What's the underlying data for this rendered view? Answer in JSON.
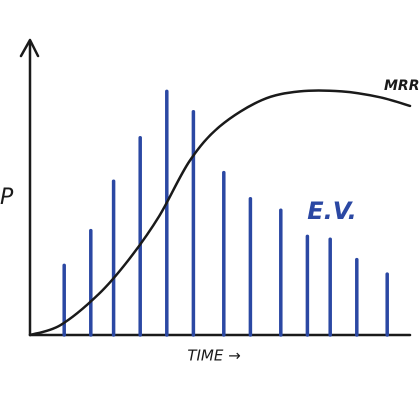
{
  "chart_data": {
    "type": "bar-line",
    "xlabel": "TIME →",
    "ylabel": "P",
    "annotation": "E.V.",
    "xlim": [
      0,
      100
    ],
    "ylim": [
      0,
      100
    ],
    "series": [
      {
        "name": "E.V.",
        "type": "bar",
        "color": "#2b48a3",
        "x": [
          9,
          16,
          22,
          29,
          36,
          43,
          51,
          58,
          66,
          73,
          79,
          86,
          94
        ],
        "values": [
          24,
          36,
          53,
          68,
          84,
          77,
          56,
          47,
          43,
          34,
          33,
          26,
          21
        ]
      },
      {
        "name": "MRR",
        "type": "line",
        "color": "#1a1a1a",
        "x": [
          0,
          8,
          18,
          26,
          34,
          42,
          50,
          61,
          71,
          82,
          92,
          100
        ],
        "values": [
          0,
          3.4,
          14,
          26,
          41,
          60,
          72,
          81,
          84,
          84,
          82,
          79
        ]
      }
    ]
  }
}
